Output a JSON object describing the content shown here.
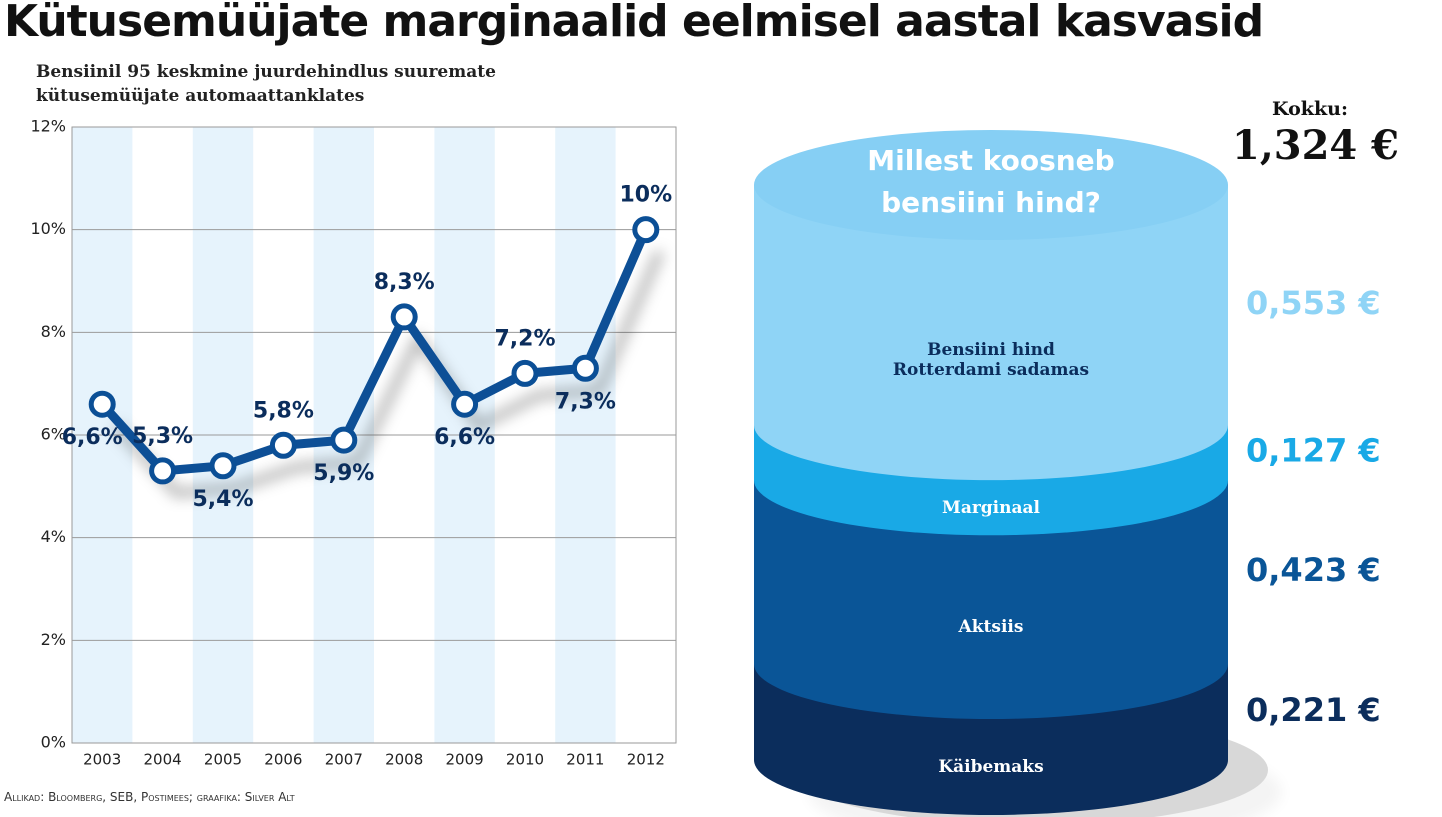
{
  "title": "Kütusemüüjate marginaalid eelmisel aastal kasvasid",
  "source": "Allikad: Bloomberg, SEB, Postimees; graafika: Silver Alt",
  "chart_data": [
    {
      "type": "line",
      "subtitle": "Bensiinil 95 keskmine juurdehindlus suuremate kütusemüüjate automaattanklates",
      "categories": [
        "2003",
        "2004",
        "2005",
        "2006",
        "2007",
        "2008",
        "2009",
        "2010",
        "2011",
        "2012"
      ],
      "values": [
        6.6,
        5.3,
        5.4,
        5.8,
        5.9,
        8.3,
        6.6,
        7.2,
        7.3,
        10
      ],
      "value_labels": [
        "6,6%",
        "5,3%",
        "5,4%",
        "5,8%",
        "5,9%",
        "8,3%",
        "6,6%",
        "7,2%",
        "7,3%",
        "10%"
      ],
      "color": "#0b4f96",
      "ylim": [
        0,
        12
      ],
      "yticks": [
        {
          "value": 0,
          "label": "0%"
        },
        {
          "value": 2,
          "label": "2%"
        },
        {
          "value": 4,
          "label": "4%"
        },
        {
          "value": 6,
          "label": "6%"
        },
        {
          "value": 8,
          "label": "8%"
        },
        {
          "value": 10,
          "label": "10%"
        },
        {
          "value": 12,
          "label": "12%"
        }
      ],
      "grid": true
    },
    {
      "type": "stacked-cylinder",
      "title": "Millest koosneb bensiini hind?",
      "total_title": "Kokku:",
      "total": 1.324,
      "total_label": "1,324 €",
      "series": [
        {
          "name": "Bensiini hind Rotterdami sadamas",
          "color": "#8fd4f6",
          "values": [
            0.553
          ],
          "value_labels": [
            "0,553 €"
          ]
        },
        {
          "name": "Marginaal",
          "color": "#19a9e6",
          "values": [
            0.127
          ],
          "value_labels": [
            "0,127 €"
          ]
        },
        {
          "name": "Aktsiis",
          "color": "#0a5597",
          "values": [
            0.423
          ],
          "value_labels": [
            "0,423 €"
          ]
        },
        {
          "name": "Käibemaks",
          "color": "#0b2d5c",
          "values": [
            0.221
          ],
          "value_labels": [
            "0,221 €"
          ]
        }
      ]
    }
  ]
}
